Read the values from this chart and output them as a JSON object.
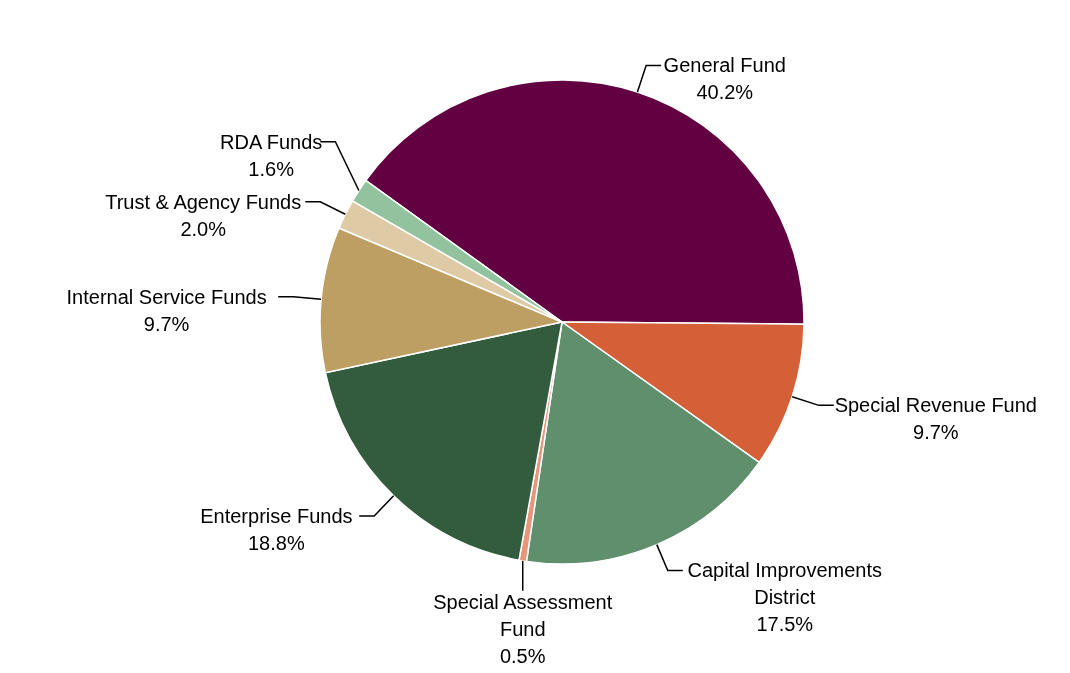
{
  "chart_data": {
    "type": "pie",
    "categories": [
      "General Fund",
      "Special Revenue Fund",
      "Capital Improvements District",
      "Special Assessment Fund",
      "Enterprise Funds",
      "Internal Service Funds",
      "Trust & Agency Funds",
      "RDA Funds"
    ],
    "values": [
      40.2,
      9.7,
      17.5,
      0.5,
      18.8,
      9.7,
      2.0,
      1.6
    ],
    "colors": [
      "#620042",
      "#d55f36",
      "#5f8f6d",
      "#e8957a",
      "#335c3e",
      "#bd9f63",
      "#decba6",
      "#93c29f"
    ],
    "value_labels": [
      "40.2%",
      "9.7%",
      "17.5%",
      "0.5%",
      "18.8%",
      "9.7%",
      "2.0%",
      "1.6%"
    ]
  }
}
